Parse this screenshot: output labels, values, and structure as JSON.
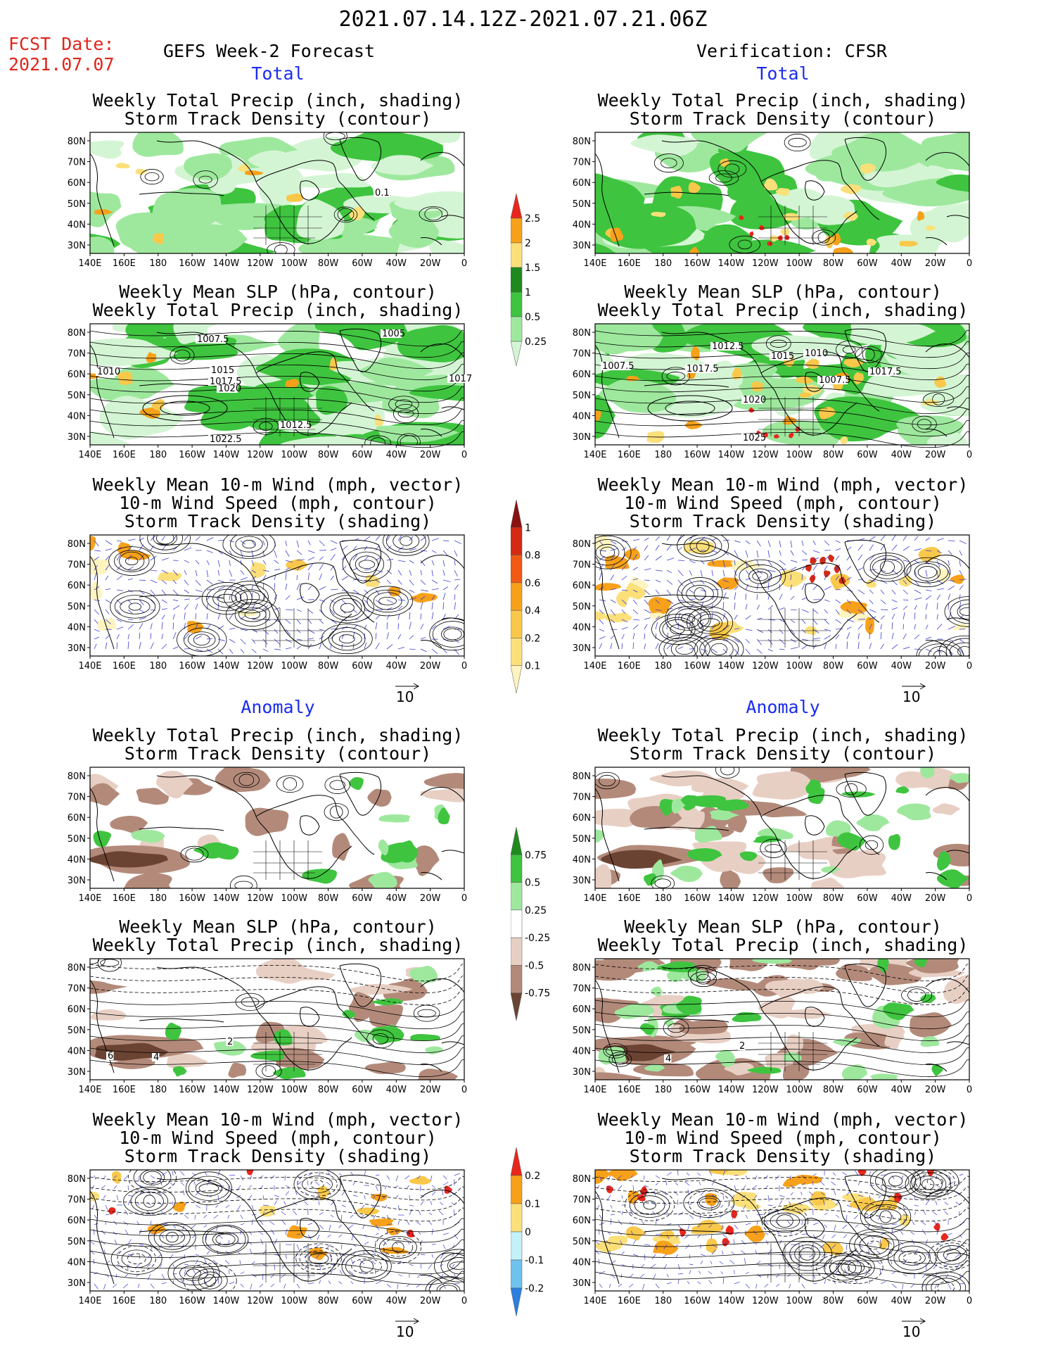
{
  "header": {
    "date_range": "2021.07.14.12Z-2021.07.21.06Z",
    "fcst_label": "FCST Date:",
    "fcst_date": "2021.07.07",
    "left_title": "GEFS Week-2 Forecast",
    "right_title": "Verification: CFSR",
    "total_label": "Total",
    "anomaly_label": "Anomaly"
  },
  "panel_titles": {
    "precip_storm": [
      "Weekly Total Precip (inch, shading)",
      "Storm Track Density (contour)"
    ],
    "slp_precip": [
      "Weekly Mean SLP (hPa, contour)",
      "Weekly Total Precip (inch, shading)"
    ],
    "wind_storm": [
      "Weekly Mean 10-m Wind (mph, vector)",
      "10-m Wind Speed (mph, contour)",
      "Storm Track Density (shading)"
    ]
  },
  "axes": {
    "lon_ticks": [
      "140E",
      "160E",
      "180",
      "160W",
      "140W",
      "120W",
      "100W",
      "80W",
      "60W",
      "40W",
      "20W",
      "0"
    ],
    "lat_ticks": [
      "80N",
      "70N",
      "60N",
      "50N",
      "40N",
      "30N"
    ]
  },
  "vector_ref": "10",
  "colorbars": {
    "precip_total": {
      "labels": [
        "2.5",
        "2",
        "1.5",
        "1",
        "0.5",
        "0.25"
      ],
      "colors": [
        "#e8261c",
        "#f7a11a",
        "#fbe07a",
        "#1e8a1e",
        "#3fc43f",
        "#9ee89e",
        "#d4f5d4"
      ]
    },
    "storm_total": {
      "labels": [
        "1",
        "0.8",
        "0.6",
        "0.4",
        "0.2",
        "0.1"
      ],
      "colors": [
        "#8a1212",
        "#d42a14",
        "#f05a14",
        "#f7a11a",
        "#f9c84a",
        "#fbe07a",
        "#fdf4c0"
      ]
    },
    "precip_anom": {
      "labels": [
        "0.75",
        "0.5",
        "0.25",
        "-0.25",
        "-0.5",
        "-0.75"
      ],
      "colors": [
        "#1e8a1e",
        "#3fc43f",
        "#9ee89e",
        "#ffffff",
        "#e8cfc4",
        "#b38a7a",
        "#6b4333"
      ]
    },
    "storm_anom": {
      "labels": [
        "0.2",
        "0.1",
        "0",
        "-0.1",
        "-0.2"
      ],
      "colors": [
        "#e8261c",
        "#f7a11a",
        "#fbe07a",
        "#c4f0f8",
        "#6ec2ee",
        "#2a7fe0"
      ]
    }
  },
  "map_labels": {
    "fcst_precip": [
      "0.1"
    ],
    "fcst_slp": [
      "1007.5",
      "1005",
      "1010",
      "1015",
      "1017.5",
      "1020",
      "1017",
      "1012.5",
      "1022.5"
    ],
    "cfsr_slp": [
      "1012.5",
      "1015",
      "1010",
      "1007.5",
      "1017.5",
      "1007.5",
      "1017.5",
      "1020",
      "1025"
    ],
    "fcst_slp_anom": [
      "6",
      "4",
      "2"
    ],
    "cfsr_slp_anom": [
      "4",
      "2"
    ]
  },
  "colors": {
    "fcst_red": "#e0241b",
    "label_blue": "#1a2cf0",
    "contour": "#000000",
    "vector": "#3b3bd6"
  }
}
